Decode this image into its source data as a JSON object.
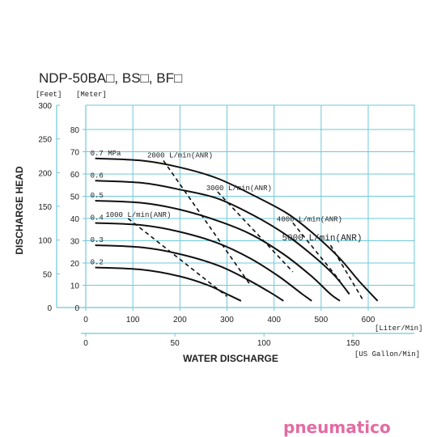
{
  "chart_data": {
    "type": "line",
    "title": "NDP-50BA□, BS□, BF□",
    "xlabel": "WATER  DISCHARGE",
    "ylabel": "DISCHARGE  HEAD",
    "x_unit_primary": "[Liter/Min]",
    "x_unit_secondary": "[US Gallon/Min]",
    "y_unit_feet": "[Feet]",
    "y_unit_meter": "[Meter]",
    "xlim": [
      0,
      700
    ],
    "ylim": [
      0,
      90
    ],
    "x_ticks_lpm": [
      "0",
      "100",
      "200",
      "300",
      "400",
      "500",
      "600"
    ],
    "x_ticks_gpm": [
      "0",
      "50",
      "100",
      "150"
    ],
    "x_ticks_gpm_values": [
      0,
      50,
      100,
      150
    ],
    "y_ticks_meter": [
      "0",
      "10",
      "20",
      "30",
      "40",
      "50",
      "60",
      "70",
      "80"
    ],
    "y_ticks_feet": [
      "0",
      "50",
      "100",
      "150",
      "200",
      "250",
      "300"
    ],
    "y_ticks_feet_values": [
      0,
      50,
      100,
      150,
      200,
      250,
      300
    ],
    "grid": true,
    "pressure_curves": [
      {
        "name": "0.7 MPa",
        "points": [
          [
            20,
            67
          ],
          [
            120,
            66
          ],
          [
            200,
            63
          ],
          [
            280,
            58
          ],
          [
            360,
            50
          ],
          [
            430,
            42
          ],
          [
            490,
            32
          ],
          [
            540,
            22
          ],
          [
            580,
            12
          ],
          [
            620,
            3
          ]
        ]
      },
      {
        "name": "0.6",
        "points": [
          [
            20,
            57
          ],
          [
            120,
            56
          ],
          [
            200,
            53
          ],
          [
            280,
            49
          ],
          [
            360,
            41
          ],
          [
            430,
            32
          ],
          [
            490,
            22
          ],
          [
            530,
            14
          ],
          [
            560,
            6
          ]
        ]
      },
      {
        "name": "0.5",
        "points": [
          [
            20,
            48
          ],
          [
            120,
            47
          ],
          [
            200,
            44
          ],
          [
            280,
            39
          ],
          [
            350,
            33
          ],
          [
            420,
            24
          ],
          [
            480,
            14
          ],
          [
            520,
            6
          ],
          [
            540,
            3
          ]
        ]
      },
      {
        "name": "0.4",
        "points": [
          [
            20,
            38
          ],
          [
            120,
            37
          ],
          [
            200,
            34
          ],
          [
            280,
            29
          ],
          [
            350,
            22
          ],
          [
            410,
            14
          ],
          [
            460,
            6
          ],
          [
            480,
            3
          ]
        ]
      },
      {
        "name": "0.3",
        "points": [
          [
            20,
            28
          ],
          [
            120,
            27
          ],
          [
            200,
            24
          ],
          [
            280,
            19
          ],
          [
            340,
            13
          ],
          [
            390,
            7
          ],
          [
            420,
            3
          ]
        ]
      },
      {
        "name": "0.2",
        "points": [
          [
            20,
            18
          ],
          [
            120,
            17
          ],
          [
            200,
            14
          ],
          [
            260,
            10
          ],
          [
            300,
            6
          ],
          [
            330,
            3
          ]
        ]
      }
    ],
    "air_consumption_lines": [
      {
        "name": "1000 L/min(ANR)",
        "points": [
          [
            90,
            40
          ],
          [
            300,
            5
          ]
        ]
      },
      {
        "name": "2000 L/min(ANR)",
        "points": [
          [
            165,
            66
          ],
          [
            350,
            10
          ]
        ]
      },
      {
        "name": "3000 L/min(ANR)",
        "points": [
          [
            280,
            52
          ],
          [
            440,
            16
          ]
        ]
      },
      {
        "name": "4000 L/min(ANR)",
        "points": [
          [
            440,
            38
          ],
          [
            540,
            12
          ]
        ]
      },
      {
        "name": "5000 L/min(ANR)",
        "points": [
          [
            520,
            28
          ],
          [
            590,
            3
          ]
        ]
      }
    ]
  },
  "watermark": "pneumatico"
}
